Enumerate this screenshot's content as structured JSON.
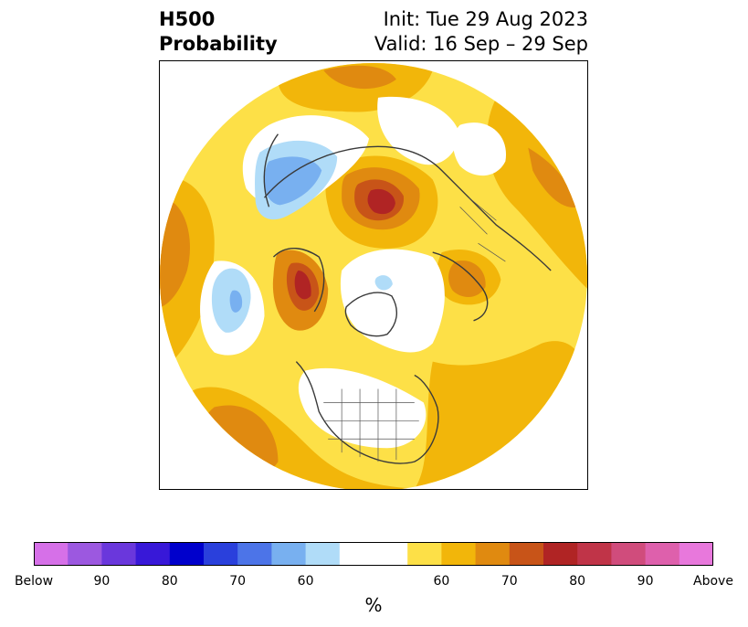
{
  "header": {
    "title_line1": "H500",
    "title_line2": "Probability",
    "init": "Init: Tue 29 Aug 2023",
    "valid": "Valid: 16 Sep – 29 Sep"
  },
  "map": {
    "projection": "north-polar-stereographic",
    "features": [
      "coastlines",
      "country-borders",
      "us-state-borders"
    ]
  },
  "colorbar": {
    "colors": [
      "#d670e8",
      "#9c58e0",
      "#6a37dc",
      "#3818d8",
      "#0000cc",
      "#2a40dc",
      "#4c74e8",
      "#78b0f0",
      "#b0dcf8",
      "#ffffff",
      "#ffffff",
      "#fde047",
      "#f2b60a",
      "#e08a10",
      "#c85418",
      "#b02424",
      "#c03448",
      "#d04c7c",
      "#de60ac",
      "#e878dc"
    ],
    "tick_labels": [
      "Below",
      "90",
      "80",
      "70",
      "60",
      "60",
      "70",
      "80",
      "90",
      "Above"
    ],
    "unit": "%"
  },
  "colors": {
    "below_light": "#b0dcf8",
    "below_mid": "#78b0f0",
    "above_light": "#fde047",
    "above_mid": "#f2b60a",
    "above_strong": "#e08a10",
    "above_high": "#c85418",
    "above_max": "#b02424"
  }
}
